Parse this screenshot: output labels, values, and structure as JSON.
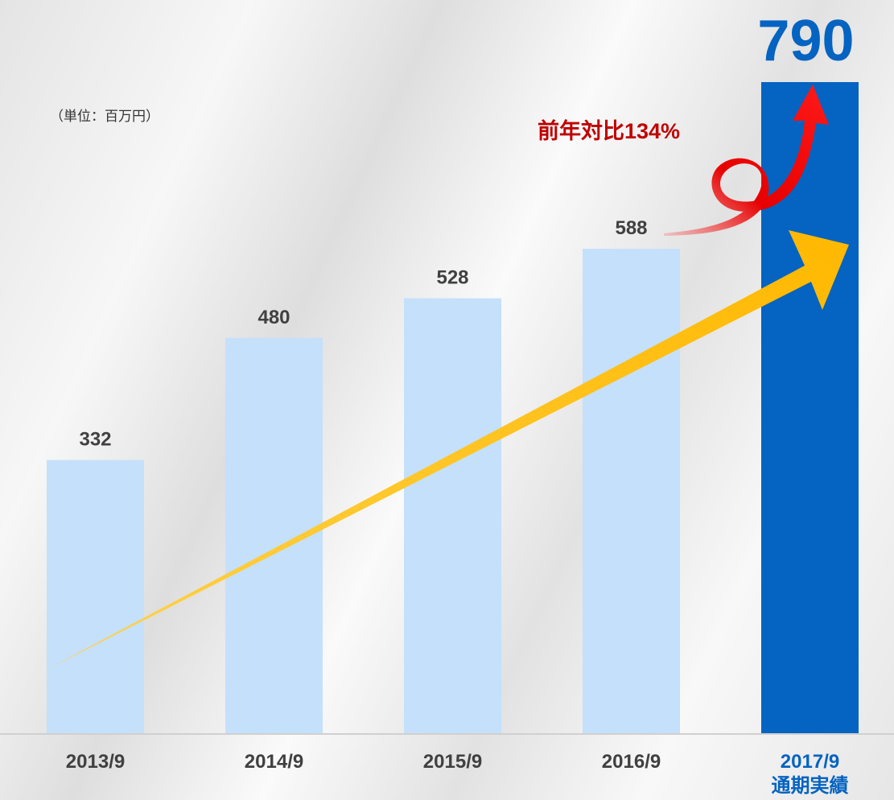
{
  "chart_data": {
    "type": "bar",
    "unit_note": "（単位：百万円）",
    "annotation": "前年対比134%",
    "categories": [
      "2013/9",
      "2014/9",
      "2015/9",
      "2016/9",
      "2017/9\n通期実績"
    ],
    "values": [
      332,
      480,
      528,
      588,
      790
    ],
    "colors": [
      "#c5e0fa",
      "#c5e0fa",
      "#c5e0fa",
      "#c5e0fa",
      "#0563c1"
    ],
    "label_colors": [
      "#404040",
      "#404040",
      "#404040",
      "#404040",
      "#0563c1"
    ]
  }
}
